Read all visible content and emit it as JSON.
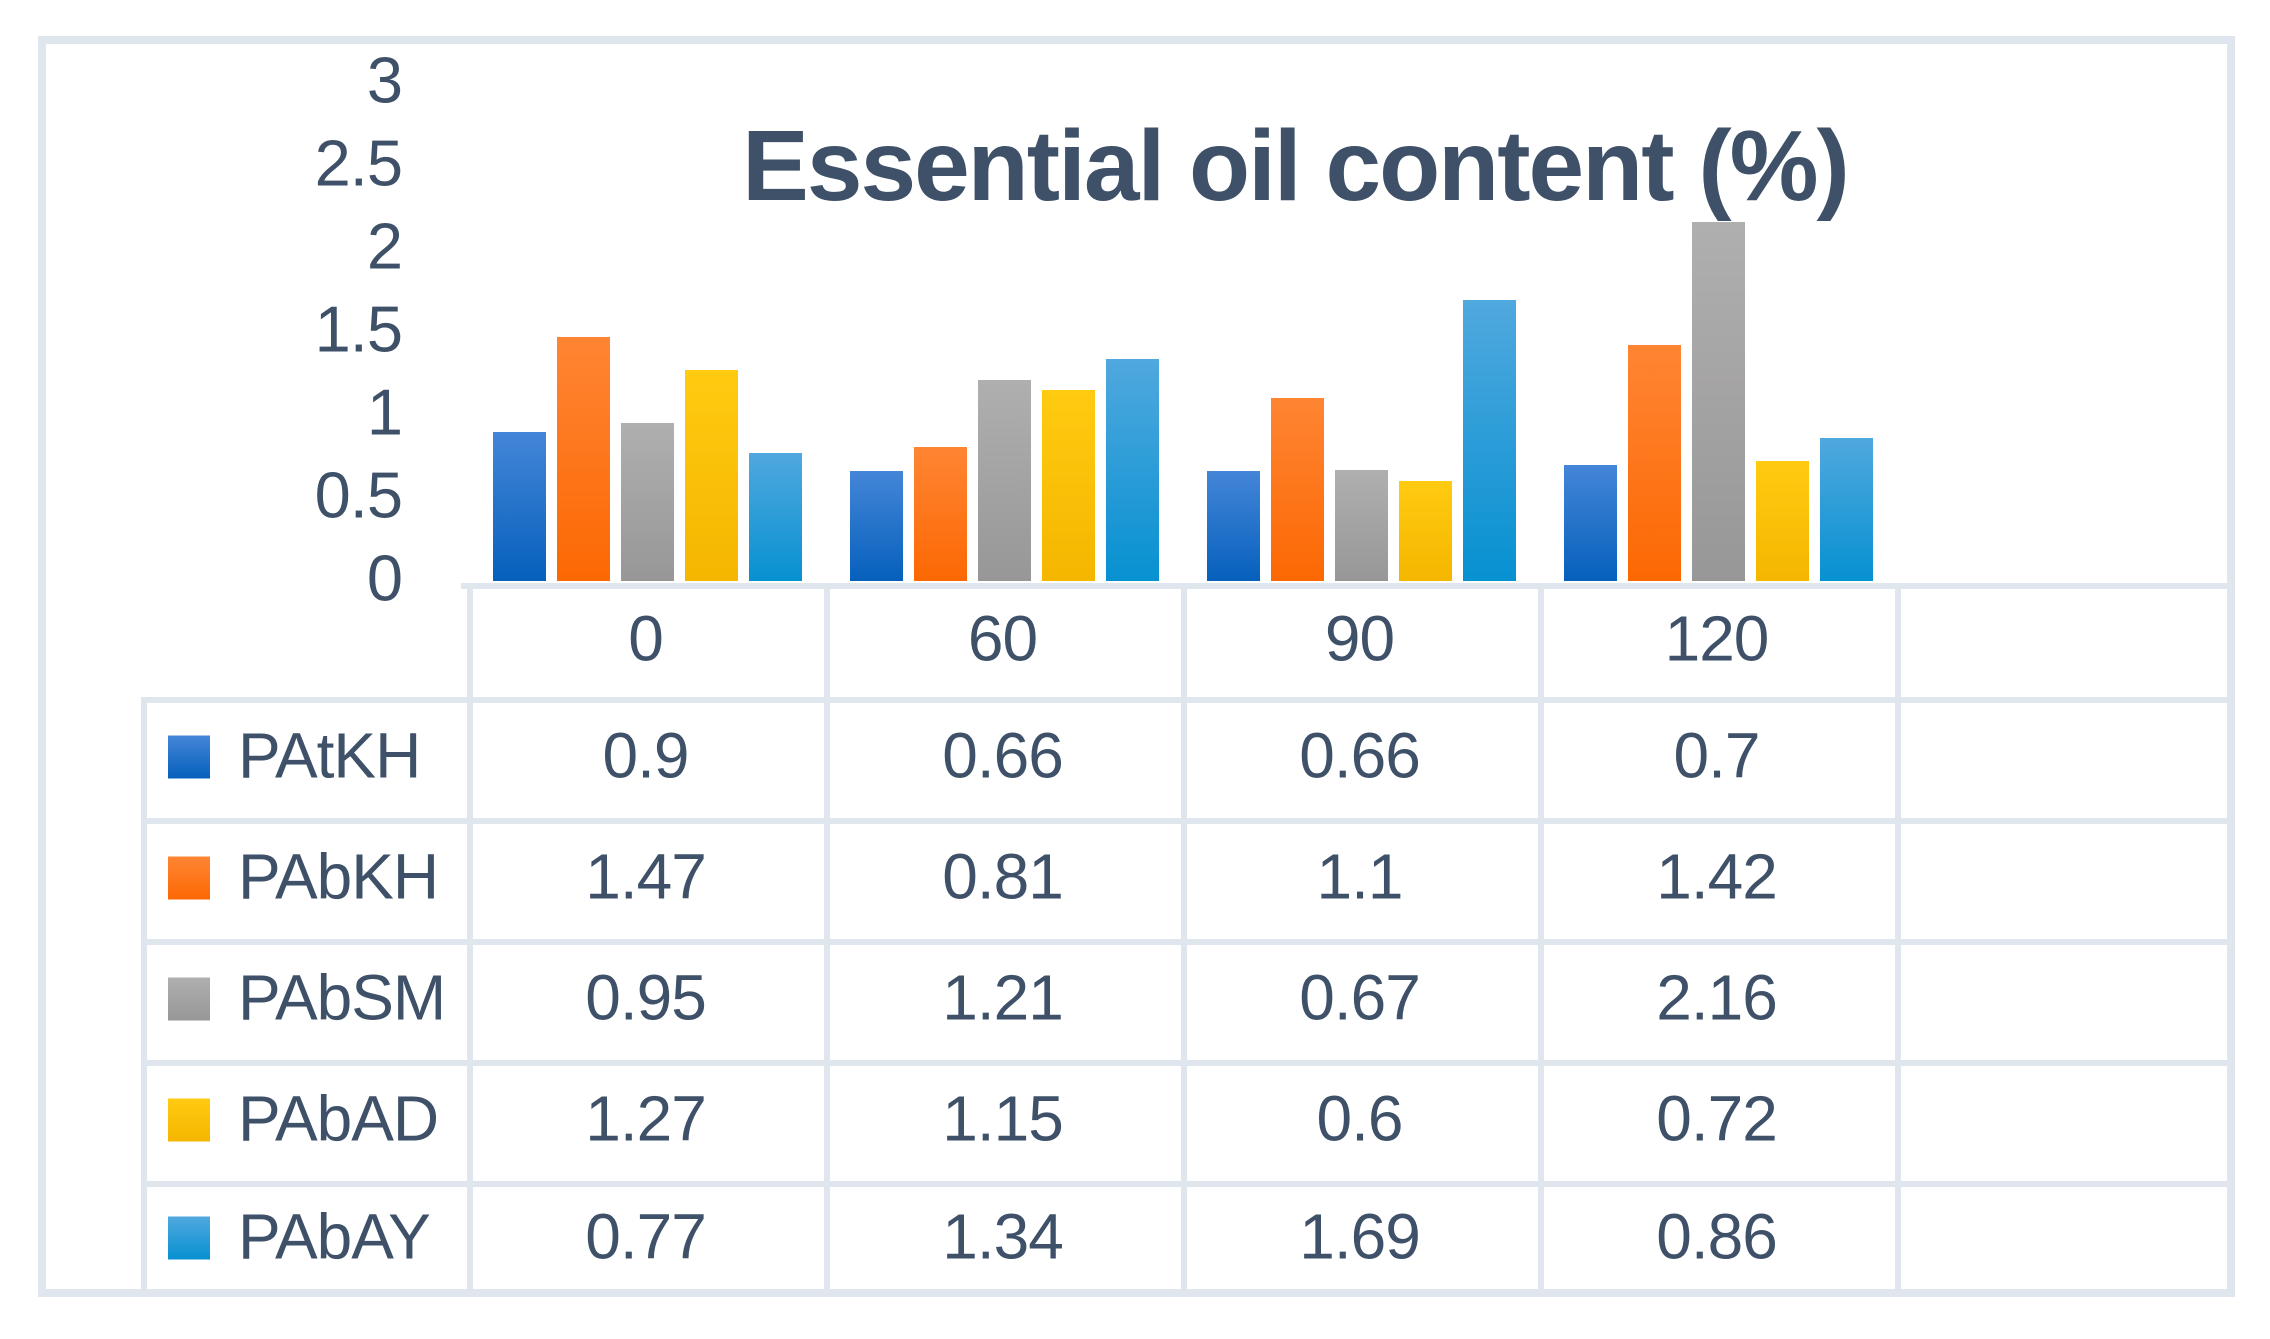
{
  "frame": {
    "border_color": "#E0E6ED"
  },
  "text_color": "#3E5168",
  "chart_data": {
    "type": "bar",
    "title": "Essential oil content (%)",
    "categories": [
      "0",
      "60",
      "90",
      "120"
    ],
    "series": [
      {
        "name": "PAtKH",
        "values": [
          0.9,
          0.66,
          0.66,
          0.7
        ],
        "color_top": "#4486D8",
        "color_bottom": "#0660BC"
      },
      {
        "name": "PAbKH",
        "values": [
          1.47,
          0.81,
          1.1,
          1.42
        ],
        "color_top": "#FF8533",
        "color_bottom": "#FC6803"
      },
      {
        "name": "PAbSM",
        "values": [
          0.95,
          1.21,
          0.67,
          2.16
        ],
        "color_top": "#B0AFAF",
        "color_bottom": "#989797"
      },
      {
        "name": "PAbAD",
        "values": [
          1.27,
          1.15,
          0.6,
          0.72
        ],
        "color_top": "#FFCB11",
        "color_bottom": "#F5B600"
      },
      {
        "name": "PAbAY",
        "values": [
          0.77,
          1.34,
          1.69,
          0.86
        ],
        "color_top": "#50A8DE",
        "color_bottom": "#0791D1"
      }
    ],
    "y_ticks": [
      "3",
      "2.5",
      "2",
      "1.5",
      "1",
      "0.5",
      "0"
    ],
    "ylim": [
      0,
      3
    ],
    "grid": false,
    "legend_position": "table-rows-left"
  },
  "table": {
    "column_headers": [
      "0",
      "60",
      "90",
      "120",
      ""
    ],
    "rows": [
      {
        "label": "PAtKH",
        "values": [
          "0.9",
          "0.66",
          "0.66",
          "0.7",
          ""
        ]
      },
      {
        "label": "PAbKH",
        "values": [
          "1.47",
          "0.81",
          "1.1",
          "1.42",
          ""
        ]
      },
      {
        "label": "PAbSM",
        "values": [
          "0.95",
          "1.21",
          "0.67",
          "2.16",
          ""
        ]
      },
      {
        "label": "PAbAD",
        "values": [
          "1.27",
          "1.15",
          "0.6",
          "0.72",
          ""
        ]
      },
      {
        "label": "PAbAY",
        "values": [
          "0.77",
          "1.34",
          "1.69",
          "0.86",
          ""
        ]
      }
    ]
  }
}
